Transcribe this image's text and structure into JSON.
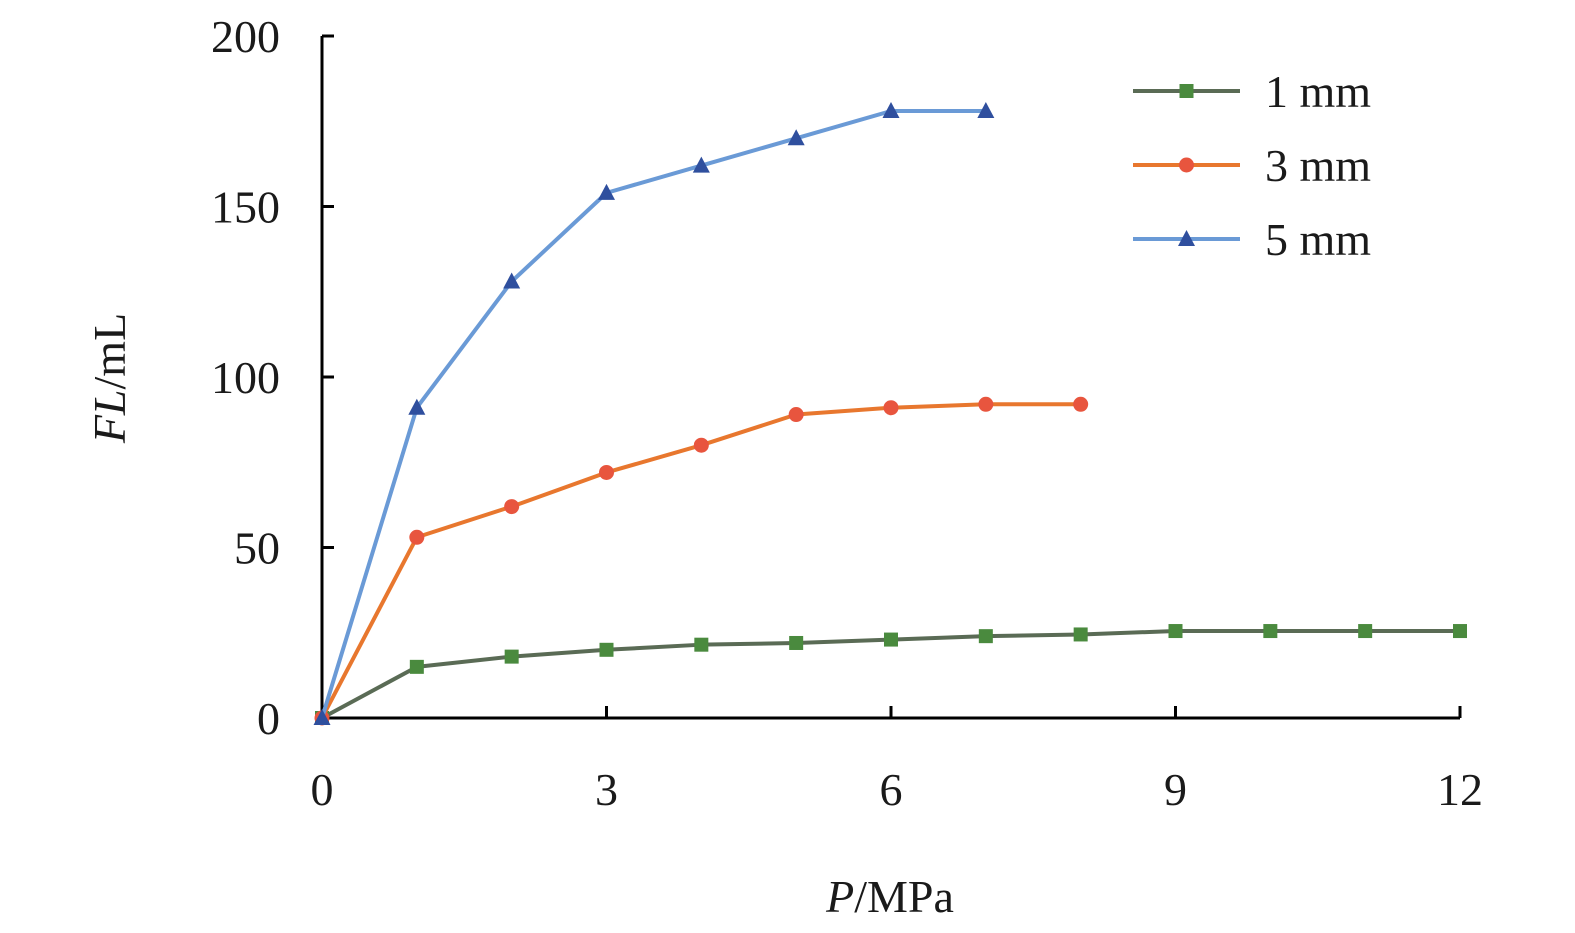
{
  "chart_data": {
    "type": "line",
    "xlabel_italic": "P",
    "xlabel_unit": "/MPa",
    "ylabel_italic": "FL",
    "ylabel_unit": "/mL",
    "xlim": [
      0,
      12
    ],
    "ylim": [
      0,
      200
    ],
    "x_ticks": [
      0,
      3,
      6,
      9,
      12
    ],
    "y_ticks": [
      0,
      50,
      100,
      150,
      200
    ],
    "x_tick_labels": [
      "0",
      "3",
      "6",
      "9",
      "12"
    ],
    "y_tick_labels": [
      "0",
      "50",
      "100",
      "150",
      "200"
    ],
    "grid": false,
    "legend_position": "top-right",
    "series": [
      {
        "name": "1 mm",
        "color": "#5a6b55",
        "marker_color": "#4a8a3e",
        "marker": "square",
        "x": [
          0,
          1,
          2,
          3,
          4,
          5,
          6,
          7,
          8,
          9,
          10,
          11,
          12
        ],
        "y": [
          0,
          15,
          18,
          20,
          21.5,
          22,
          23,
          24,
          24.5,
          25.5,
          25.5,
          25.5,
          25.5
        ]
      },
      {
        "name": "3 mm",
        "color": "#e8772e",
        "marker_color": "#e8553e",
        "marker": "circle",
        "x": [
          0,
          1,
          2,
          3,
          4,
          5,
          6,
          7,
          8
        ],
        "y": [
          0,
          53,
          62,
          72,
          80,
          89,
          91,
          92,
          92
        ]
      },
      {
        "name": "5 mm",
        "color": "#6a9ad6",
        "marker_color": "#2f4f9e",
        "marker": "triangle",
        "x": [
          0,
          1,
          2,
          3,
          4,
          5,
          6,
          7
        ],
        "y": [
          0,
          91,
          128,
          154,
          162,
          170,
          178,
          178
        ]
      }
    ]
  }
}
